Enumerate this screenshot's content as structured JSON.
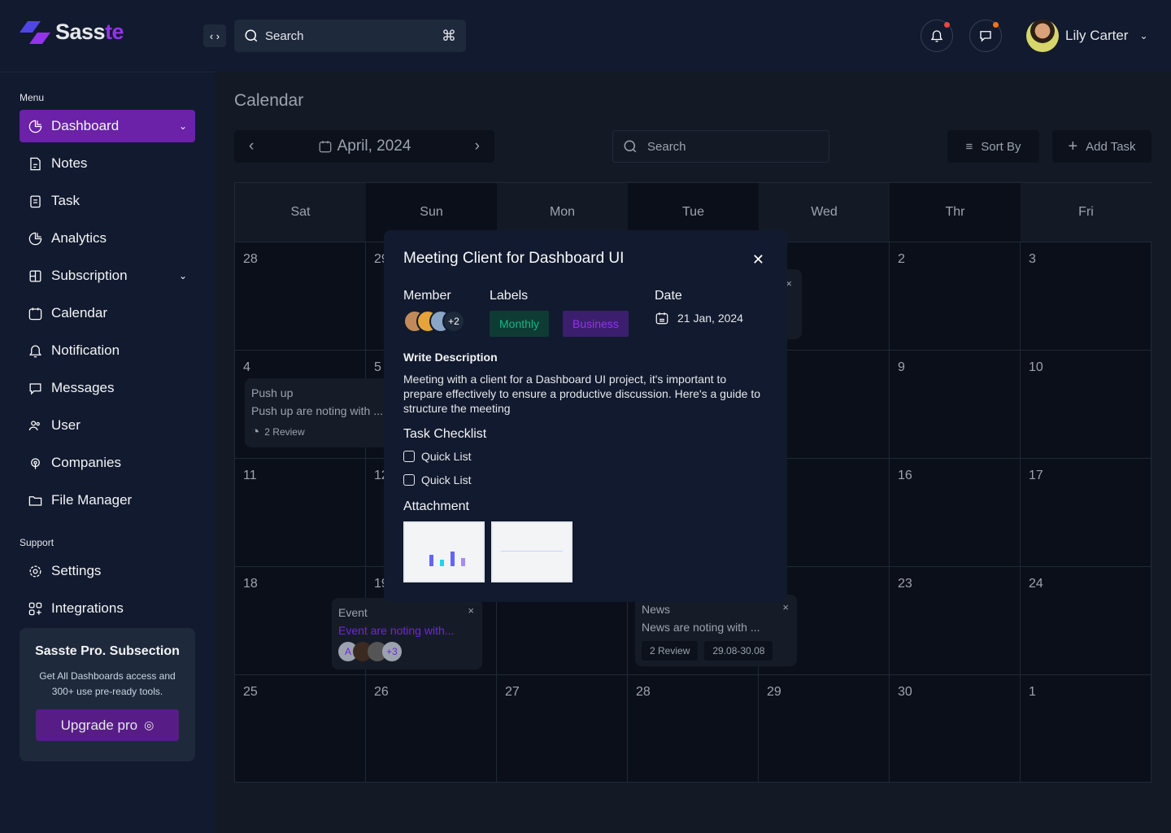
{
  "brand": {
    "name_a": "Sass",
    "name_b": "te",
    "accent": "#9333ea"
  },
  "header": {
    "search_placeholder": "Search",
    "shortcut": "⌘",
    "user_name": "Lily Carter",
    "notif_dot": "#ef4444",
    "msg_dot": "#f97316"
  },
  "sidebar": {
    "menu_label": "Menu",
    "items": [
      {
        "label": "Dashboard",
        "icon": "pie-chart-icon"
      },
      {
        "label": "Notes",
        "icon": "note-icon"
      },
      {
        "label": "Task",
        "icon": "clipboard-icon"
      },
      {
        "label": "Analytics",
        "icon": "pie-chart-icon"
      },
      {
        "label": "Subscription",
        "icon": "layout-icon"
      },
      {
        "label": "Calendar",
        "icon": "calendar-icon"
      },
      {
        "label": "Notification",
        "icon": "bell-icon"
      },
      {
        "label": "Messages",
        "icon": "message-icon"
      },
      {
        "label": "User",
        "icon": "users-icon"
      },
      {
        "label": "Companies",
        "icon": "broadcast-icon"
      },
      {
        "label": "File Manager",
        "icon": "folder-icon"
      }
    ],
    "support_label": "Support",
    "support": [
      {
        "label": "Settings"
      },
      {
        "label": "Integrations"
      }
    ],
    "promo": {
      "title": "Sasste Pro. Subsection",
      "text": "Get All Dashboards access and 300+ use pre-ready tools.",
      "button": "Upgrade pro"
    }
  },
  "main": {
    "title": "Calendar",
    "month": "April, 2024",
    "search_placeholder": "Search",
    "sort": "Sort By",
    "add": "Add Task",
    "days": [
      "Sat",
      "Sun",
      "Mon",
      "Tue",
      "Wed",
      "Thr",
      "Fri"
    ],
    "dates": [
      [
        "28",
        "29",
        "",
        "",
        "",
        "2",
        "3"
      ],
      [
        "4",
        "5",
        "",
        "",
        "",
        "9",
        "10"
      ],
      [
        "11",
        "12",
        "",
        "",
        "",
        "16",
        "17"
      ],
      [
        "18",
        "19",
        "",
        "",
        "",
        "23",
        "24"
      ],
      [
        "25",
        "26",
        "27",
        "28",
        "29",
        "30",
        "1"
      ]
    ],
    "cards": {
      "push": {
        "title": "Push up",
        "text": "Push up are noting with ...",
        "review": "2 Review"
      },
      "event": {
        "title": "Event",
        "text": "Event are noting with...",
        "avatar_letter": "A",
        "more": "+3"
      },
      "news": {
        "title": "News",
        "text": "News are noting with ...",
        "review": "2 Review",
        "range": "29.08-30.08"
      }
    }
  },
  "modal": {
    "title": "Meeting Client for Dashboard  UI",
    "member_label": "Member",
    "more": "+2",
    "labels_label": "Labels",
    "labels": [
      "Monthly",
      "Business"
    ],
    "date_label": "Date",
    "date": "21 Jan, 2024",
    "desc_label": "Write Description",
    "desc": "Meeting with a client for a Dashboard UI project, it's important to prepare effectively to ensure a productive discussion. Here's a guide to structure the meeting",
    "checklist_label": "Task Checklist",
    "checklist": [
      {
        "label": "Quick List",
        "checked": false
      },
      {
        "label": "Quick List",
        "checked": false
      }
    ],
    "attachment_label": "Attachment"
  }
}
